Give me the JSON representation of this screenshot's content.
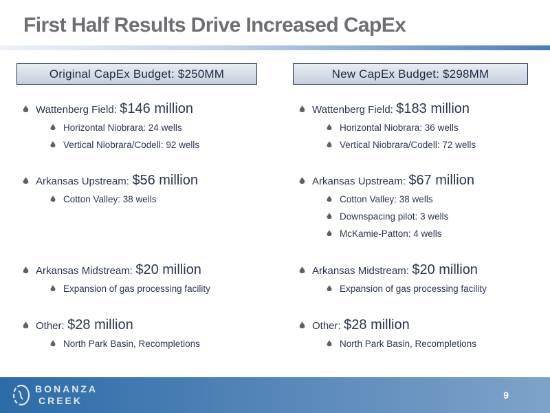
{
  "title": "First Half Results Drive Increased CapEx",
  "columns": [
    {
      "header": "Original CapEx Budget: $250MM",
      "items": [
        {
          "label": "Wattenberg Field:",
          "amount": "$146 million",
          "subs": [
            "Horizontal Niobrara: 24 wells",
            "Vertical Niobrara/Codell: 92 wells"
          ]
        },
        {
          "label": "Arkansas Upstream:",
          "amount": "$56 million",
          "subs": [
            "Cotton Valley: 38 wells"
          ]
        },
        {
          "label": "Arkansas Midstream:",
          "amount": "$20 million",
          "subs": [
            "Expansion of gas processing facility"
          ]
        },
        {
          "label": "Other:",
          "amount": "$28 million",
          "subs": [
            "North Park Basin, Recompletions"
          ]
        }
      ]
    },
    {
      "header": "New CapEx Budget: $298MM",
      "items": [
        {
          "label": "Wattenberg Field:",
          "amount": "$183 million",
          "subs": [
            "Horizontal Niobrara: 36 wells",
            "Vertical Niobrara/Codell: 72 wells"
          ]
        },
        {
          "label": "Arkansas Upstream:",
          "amount": "$67 million",
          "subs": [
            "Cotton Valley: 38 wells",
            "Downspacing pilot: 3 wells",
            "McKamie-Patton: 4 wells"
          ]
        },
        {
          "label": "Arkansas Midstream:",
          "amount": "$20 million",
          "subs": [
            "Expansion of gas processing facility"
          ]
        },
        {
          "label": "Other:",
          "amount": "$28 million",
          "subs": [
            "North Park Basin, Recompletions"
          ]
        }
      ]
    }
  ],
  "footer": {
    "logo_line1": "BONANZA",
    "logo_line2": "CREEK",
    "page_number": "9"
  },
  "icons": {
    "bullet": "flame-bullet-icon",
    "logo": "bonanza-creek-logo-icon"
  },
  "colors": {
    "accent": "#4a7cb7",
    "text": "#2a3550",
    "bullet": "#5e6068",
    "title": "#6e6e74"
  }
}
